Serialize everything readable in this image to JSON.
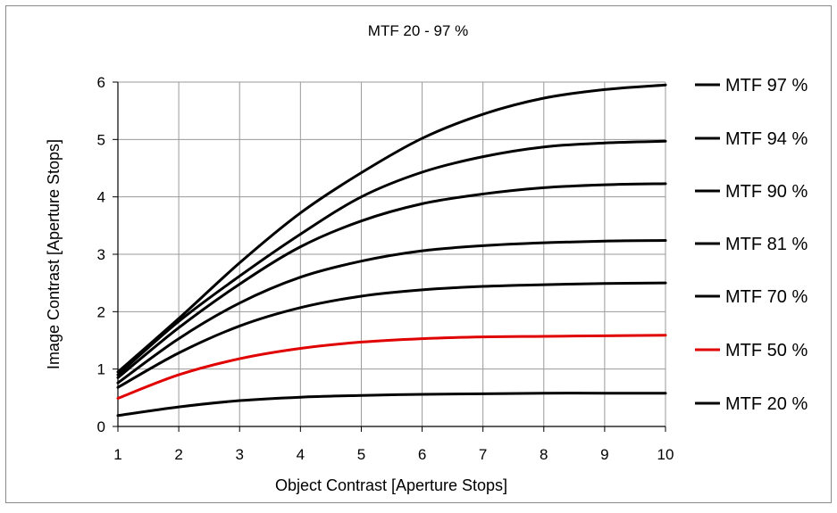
{
  "chart_data": {
    "type": "line",
    "title": "MTF 20 - 97 %",
    "xlabel": "Object Contrast [Aperture Stops]",
    "ylabel": "Image Contrast [Aperture Stops]",
    "xlim": [
      1,
      10
    ],
    "ylim": [
      0,
      6
    ],
    "xticks": [
      "1",
      "2",
      "3",
      "4",
      "5",
      "6",
      "7",
      "8",
      "9",
      "10"
    ],
    "yticks": [
      "0",
      "1",
      "2",
      "3",
      "4",
      "5",
      "6"
    ],
    "grid": true,
    "legend_position": "right",
    "x": [
      1,
      2,
      3,
      4,
      5,
      6,
      7,
      8,
      9,
      10
    ],
    "series": [
      {
        "name": "MTF 97 %",
        "color": "#000000",
        "values": [
          0.95,
          1.88,
          2.85,
          3.72,
          4.42,
          5.02,
          5.44,
          5.72,
          5.87,
          5.95
        ]
      },
      {
        "name": "MTF 94 %",
        "color": "#000000",
        "values": [
          0.9,
          1.83,
          2.62,
          3.35,
          4.0,
          4.43,
          4.7,
          4.87,
          4.94,
          4.97
        ]
      },
      {
        "name": "MTF 90 %",
        "color": "#000000",
        "values": [
          0.85,
          1.72,
          2.48,
          3.13,
          3.58,
          3.88,
          4.05,
          4.16,
          4.21,
          4.23
        ]
      },
      {
        "name": "MTF 81 %",
        "color": "#000000",
        "values": [
          0.76,
          1.53,
          2.15,
          2.6,
          2.88,
          3.06,
          3.15,
          3.2,
          3.23,
          3.24
        ]
      },
      {
        "name": "MTF 70 %",
        "color": "#000000",
        "values": [
          0.68,
          1.28,
          1.75,
          2.07,
          2.27,
          2.38,
          2.44,
          2.47,
          2.49,
          2.5
        ]
      },
      {
        "name": "MTF 50 %",
        "color": "#e00000",
        "values": [
          0.49,
          0.9,
          1.18,
          1.36,
          1.47,
          1.53,
          1.56,
          1.57,
          1.58,
          1.59
        ]
      },
      {
        "name": "MTF 20 %",
        "color": "#000000",
        "values": [
          0.19,
          0.34,
          0.45,
          0.51,
          0.54,
          0.56,
          0.57,
          0.58,
          0.58,
          0.58
        ]
      }
    ]
  }
}
